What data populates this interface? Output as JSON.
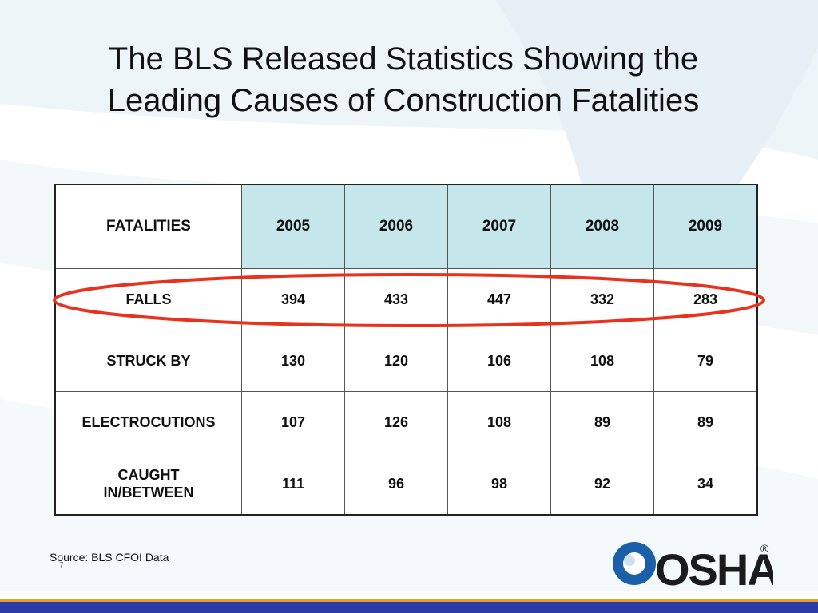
{
  "slide": {
    "title_line1": "The BLS Released Statistics Showing the",
    "title_line2": "Leading Causes of Construction Fatalities",
    "source": "Source: BLS CFOI Data",
    "page_number": "7",
    "logo_text": "OSHA",
    "logo_mark": "®"
  },
  "table": {
    "header": {
      "label": "FATALITIES",
      "years": [
        "2005",
        "2006",
        "2007",
        "2008",
        "2009"
      ]
    },
    "rows": [
      {
        "label": "FALLS",
        "values": [
          "394",
          "433",
          "447",
          "332",
          "283"
        ]
      },
      {
        "label": "STRUCK BY",
        "values": [
          "130",
          "120",
          "106",
          "108",
          "79"
        ]
      },
      {
        "label": "ELECTROCUTIONS",
        "values": [
          "107",
          "126",
          "108",
          "89",
          "89"
        ]
      },
      {
        "label_line1": "CAUGHT",
        "label_line2": "IN/BETWEEN",
        "values": [
          "111",
          "96",
          "98",
          "92",
          "34"
        ]
      }
    ],
    "highlighted_row": "FALLS"
  },
  "colors": {
    "header_fill": "#c5e6ea",
    "highlight_oval": "#e8321e",
    "footer_gold": "#e4a326",
    "footer_blue": "#2b3aa5",
    "logo_blue": "#1b5fa8"
  }
}
